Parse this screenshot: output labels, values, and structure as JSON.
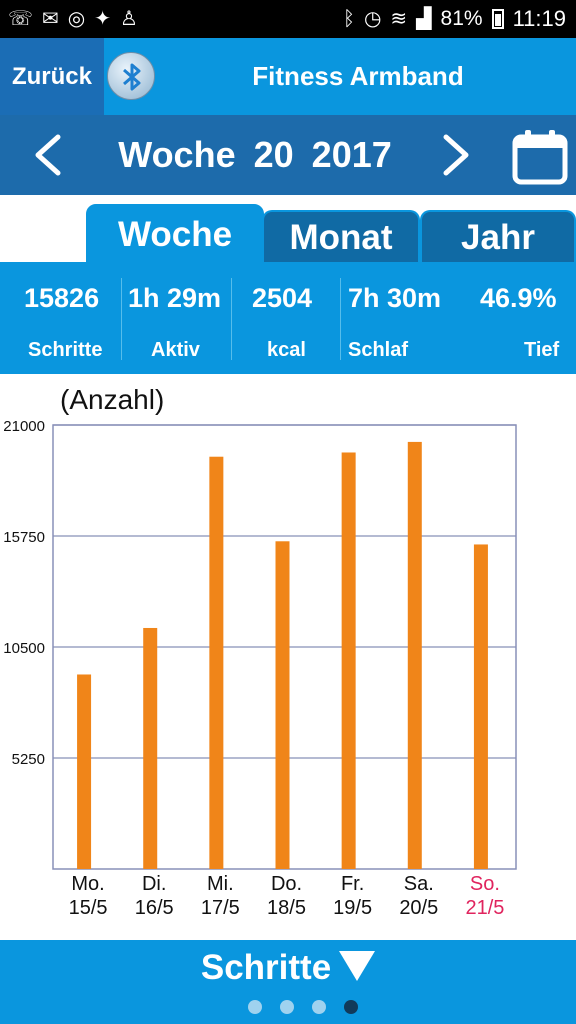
{
  "status_bar": {
    "battery_percent": "81%",
    "time": "11:19"
  },
  "header": {
    "back_label": "Zurück",
    "title": "Fitness Armband"
  },
  "week_nav": {
    "week_word": "Woche",
    "week_number": "20",
    "year": "2017"
  },
  "tabs": [
    {
      "label": "Woche",
      "active": true
    },
    {
      "label": "Monat",
      "active": false
    },
    {
      "label": "Jahr",
      "active": false
    }
  ],
  "stats": [
    {
      "value": "15826",
      "label": "Schritte"
    },
    {
      "value": "1h 29m",
      "label": "Aktiv"
    },
    {
      "value": "2504",
      "label": "kcal"
    },
    {
      "value": "7h 30m",
      "label": "Schlaf"
    },
    {
      "value": "46.9%",
      "label": "Tief"
    }
  ],
  "chart_data": {
    "type": "bar",
    "ylabel": "(Anzahl)",
    "ylim": [
      0,
      21000
    ],
    "yticks": [
      5250,
      10500,
      15750,
      21000
    ],
    "ytick_labels": [
      "5250",
      "10500",
      "15750",
      "21000"
    ],
    "grid": true,
    "bar_color": "#f08519",
    "highlight_color": "#e0245e",
    "categories": [
      {
        "day": "Mo.",
        "date": "15/5"
      },
      {
        "day": "Di.",
        "date": "16/5"
      },
      {
        "day": "Mi.",
        "date": "17/5"
      },
      {
        "day": "Do.",
        "date": "18/5"
      },
      {
        "day": "Fr.",
        "date": "19/5"
      },
      {
        "day": "Sa.",
        "date": "20/5"
      },
      {
        "day": "So.",
        "date": "21/5"
      }
    ],
    "highlight_index": 6,
    "values": [
      9200,
      11400,
      19500,
      15500,
      19700,
      20200,
      15350
    ]
  },
  "bottom": {
    "metric_label": "Schritte",
    "page_count": 4,
    "active_page": 3
  }
}
